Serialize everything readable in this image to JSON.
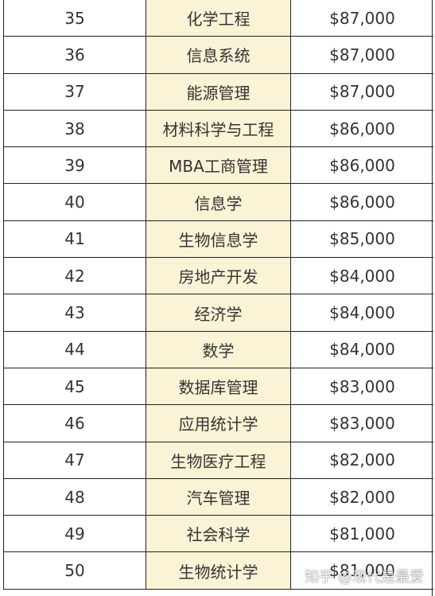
{
  "rows": [
    {
      "rank": "35",
      "major": "化学工程",
      "salary": "$87,000"
    },
    {
      "rank": "36",
      "major": "信息系统",
      "salary": "$87,000"
    },
    {
      "rank": "37",
      "major": "能源管理",
      "salary": "$87,000"
    },
    {
      "rank": "38",
      "major": "材料科学与工程",
      "salary": "$86,000"
    },
    {
      "rank": "39",
      "major": "MBA工商管理",
      "salary": "$86,000"
    },
    {
      "rank": "40",
      "major": "信息学",
      "salary": "$86,000"
    },
    {
      "rank": "41",
      "major": "生物信息学",
      "salary": "$85,000"
    },
    {
      "rank": "42",
      "major": "房地产开发",
      "salary": "$84,000"
    },
    {
      "rank": "43",
      "major": "经济学",
      "salary": "$84,000"
    },
    {
      "rank": "44",
      "major": "数学",
      "salary": "$84,000"
    },
    {
      "rank": "45",
      "major": "数据库管理",
      "salary": "$83,000"
    },
    {
      "rank": "46",
      "major": "应用统计学",
      "salary": "$83,000"
    },
    {
      "rank": "47",
      "major": "生物医疗工程",
      "salary": "$82,000"
    },
    {
      "rank": "48",
      "major": "汽车管理",
      "salary": "$82,000"
    },
    {
      "rank": "49",
      "major": "社会科学",
      "salary": "$81,000"
    },
    {
      "rank": "50",
      "major": "生物统计学",
      "salary": "$81,000"
    }
  ],
  "watermark": "知乎 @现代是最爱",
  "colors": {
    "major_column_bg": "#fbf3d5",
    "border": "#222222",
    "text": "#333333"
  }
}
